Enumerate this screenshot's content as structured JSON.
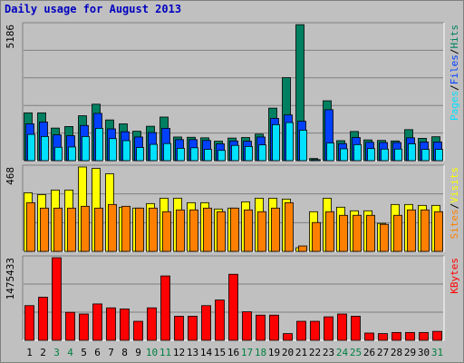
{
  "title": "Daily usage for August 2013",
  "colors": {
    "hits": "#008060",
    "files": "#0040ff",
    "pages": "#00e0ff",
    "visits": "#ffff00",
    "sites": "#ff8000",
    "kbytes": "#ff0000",
    "weekend_day": "#008040",
    "weekday_day": "#000000",
    "background": "#c0c0c0",
    "grid": "#808080"
  },
  "chart_data": [
    {
      "type": "bar",
      "panel": "hits_files_pages",
      "ymax_label": "5186",
      "ylim": [
        0,
        5186
      ],
      "categories": [
        "1",
        "2",
        "3",
        "4",
        "5",
        "6",
        "7",
        "8",
        "9",
        "10",
        "11",
        "12",
        "13",
        "14",
        "15",
        "16",
        "17",
        "18",
        "19",
        "20",
        "21",
        "22",
        "23",
        "24",
        "25",
        "26",
        "27",
        "28",
        "29",
        "30",
        "31"
      ],
      "series_labels": {
        "pages": "Pages",
        "files": "Files",
        "hits": "Hits",
        "separator": "/"
      },
      "series": [
        {
          "name": "Hits",
          "values": [
            1820,
            1820,
            1240,
            1300,
            1710,
            2150,
            1550,
            1400,
            1120,
            1310,
            1660,
            900,
            890,
            870,
            740,
            860,
            880,
            1010,
            2000,
            3160,
            5180,
            80,
            2280,
            760,
            1110,
            790,
            770,
            750,
            1180,
            850,
            910
          ]
        },
        {
          "name": "Files",
          "values": [
            1400,
            1470,
            980,
            950,
            1340,
            1800,
            1210,
            1100,
            900,
            1070,
            1230,
            800,
            800,
            770,
            640,
            750,
            740,
            900,
            1610,
            1740,
            1500,
            40,
            1940,
            650,
            880,
            700,
            690,
            690,
            870,
            710,
            710
          ]
        },
        {
          "name": "Pages",
          "values": [
            1000,
            920,
            510,
            520,
            920,
            1230,
            840,
            760,
            500,
            620,
            650,
            470,
            490,
            430,
            390,
            580,
            540,
            600,
            1370,
            1450,
            1160,
            20,
            670,
            450,
            610,
            460,
            440,
            440,
            640,
            430,
            430
          ]
        }
      ]
    },
    {
      "type": "bar",
      "panel": "visits_sites",
      "ymax_label": "468",
      "ylim": [
        0,
        468
      ],
      "categories": [
        "1",
        "2",
        "3",
        "4",
        "5",
        "6",
        "7",
        "8",
        "9",
        "10",
        "11",
        "12",
        "13",
        "14",
        "15",
        "16",
        "17",
        "18",
        "19",
        "20",
        "21",
        "22",
        "23",
        "24",
        "25",
        "26",
        "27",
        "28",
        "29",
        "30",
        "31"
      ],
      "series_labels": {
        "sites": "Sites",
        "visits": "Visits",
        "separator": "/"
      },
      "series": [
        {
          "name": "Visits",
          "values": [
            325,
            315,
            340,
            340,
            468,
            460,
            430,
            245,
            240,
            265,
            295,
            295,
            270,
            270,
            235,
            240,
            275,
            295,
            295,
            290,
            20,
            220,
            295,
            245,
            225,
            225,
            155,
            260,
            260,
            255,
            255
          ]
        },
        {
          "name": "Sites",
          "values": [
            270,
            240,
            240,
            240,
            250,
            240,
            260,
            250,
            240,
            240,
            220,
            230,
            230,
            240,
            220,
            240,
            230,
            220,
            240,
            270,
            30,
            160,
            220,
            200,
            200,
            200,
            150,
            200,
            230,
            230,
            220
          ]
        }
      ]
    },
    {
      "type": "bar",
      "panel": "kbytes",
      "ymax_label": "1475433",
      "ylim": [
        0,
        1475433
      ],
      "categories": [
        "1",
        "2",
        "3",
        "4",
        "5",
        "6",
        "7",
        "8",
        "9",
        "10",
        "11",
        "12",
        "13",
        "14",
        "15",
        "16",
        "17",
        "18",
        "19",
        "20",
        "21",
        "22",
        "23",
        "24",
        "25",
        "26",
        "27",
        "28",
        "29",
        "30",
        "31"
      ],
      "series_labels": {
        "kbytes": "KBytes"
      },
      "series": [
        {
          "name": "KBytes",
          "values": [
            620000,
            770000,
            1475433,
            500000,
            470000,
            650000,
            580000,
            560000,
            340000,
            580000,
            1150000,
            430000,
            430000,
            620000,
            720000,
            1180000,
            510000,
            450000,
            450000,
            120000,
            340000,
            340000,
            420000,
            470000,
            430000,
            130000,
            120000,
            140000,
            140000,
            140000,
            160000
          ]
        }
      ]
    }
  ],
  "weekend_days": [
    "3",
    "4",
    "10",
    "11",
    "17",
    "18",
    "24",
    "25",
    "31"
  ]
}
